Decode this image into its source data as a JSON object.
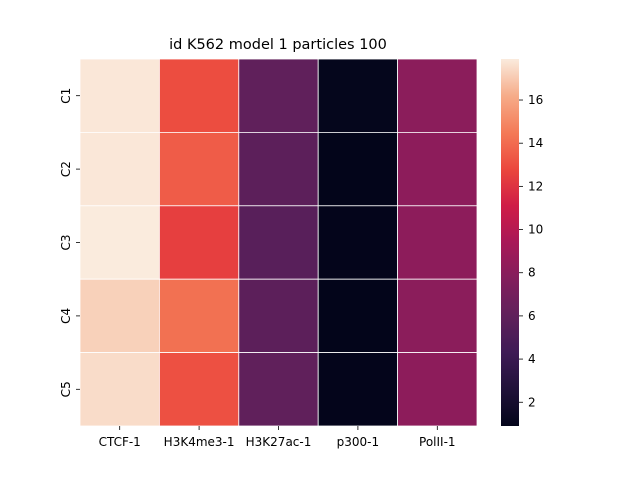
{
  "chart_data": {
    "type": "heatmap",
    "title": "id K562 model 1 particles 100",
    "x_categories": [
      "CTCF-1",
      "H3K4me3-1",
      "H3K27ac-1",
      "p300-1",
      "PolII-1"
    ],
    "y_categories": [
      "C1",
      "C2",
      "C3",
      "C4",
      "C5"
    ],
    "values": [
      [
        17.8,
        13.0,
        6.0,
        1.0,
        8.1
      ],
      [
        17.8,
        13.5,
        5.8,
        0.9,
        8.2
      ],
      [
        17.9,
        12.5,
        5.6,
        0.95,
        8.2
      ],
      [
        17.2,
        14.2,
        5.8,
        0.9,
        8.1
      ],
      [
        17.5,
        13.1,
        6.0,
        0.95,
        8.2
      ]
    ],
    "colormap": "rocket",
    "vmin": 0.9,
    "vmax": 17.9,
    "colorbar_ticks": [
      2,
      4,
      6,
      8,
      10,
      12,
      14,
      16
    ],
    "grid_lines": true,
    "grid_color": "#ffffff",
    "legend_position": "right"
  }
}
